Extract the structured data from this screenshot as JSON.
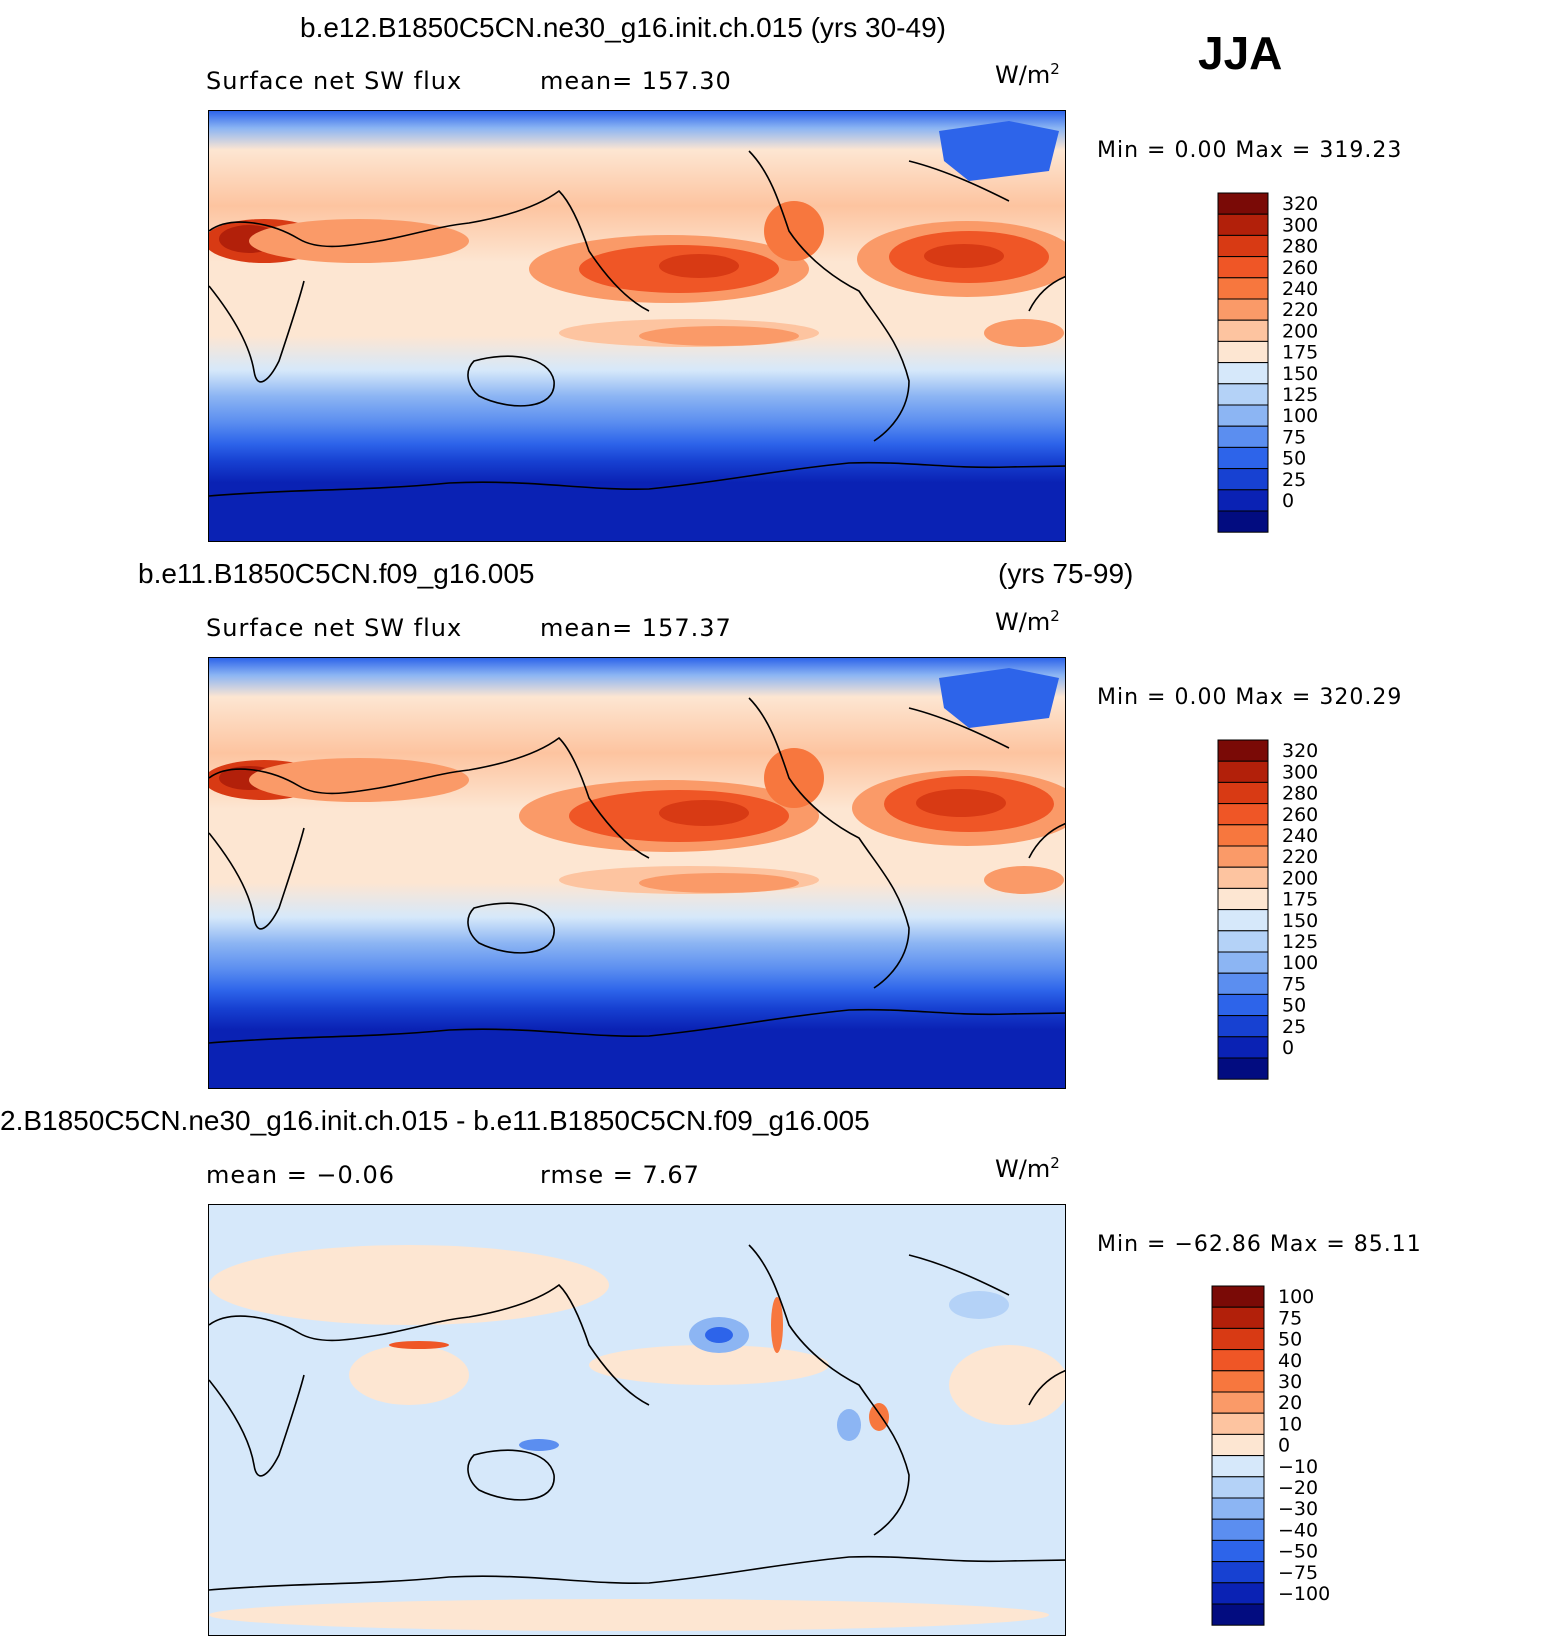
{
  "season_label": "JJA",
  "panels": [
    {
      "title": "b.e12.B1850C5CN.ne30_g16.init.ch.015 (yrs 30-49)",
      "title_right": "",
      "left_label": "Surface net SW flux",
      "center_label": "mean=  157.30",
      "units": "W/m",
      "units_exp": "2",
      "min_max": "Min  =     0.00  Max  =  319.23",
      "colorbar_levels": [
        "320",
        "300",
        "280",
        "260",
        "240",
        "220",
        "200",
        "175",
        "150",
        "125",
        "100",
        "75",
        "50",
        "25",
        "0"
      ],
      "palette": "absolute"
    },
    {
      "title": "b.e11.B1850C5CN.f09_g16.005",
      "title_right": "(yrs 75-99)",
      "left_label": "Surface net SW flux",
      "center_label": "mean=  157.37",
      "units": "W/m",
      "units_exp": "2",
      "min_max": "Min  =     0.00  Max  =  320.29",
      "colorbar_levels": [
        "320",
        "300",
        "280",
        "260",
        "240",
        "220",
        "200",
        "175",
        "150",
        "125",
        "100",
        "75",
        "50",
        "25",
        "0"
      ],
      "palette": "absolute"
    },
    {
      "title": "2.B1850C5CN.ne30_g16.init.ch.015 - b.e11.B1850C5CN.f09_g16.005",
      "title_right": "",
      "left_label": "mean  =    −0.06",
      "center_label": "rmse  =     7.67",
      "units": "W/m",
      "units_exp": "2",
      "min_max": "Min  =  −62.86  Max  =    85.11",
      "colorbar_levels": [
        "100",
        "75",
        "50",
        "40",
        "30",
        "20",
        "10",
        "0",
        "−10",
        "−20",
        "−30",
        "−40",
        "−50",
        "−75",
        "−100"
      ],
      "palette": "difference"
    }
  ],
  "colors": {
    "absolute": [
      "#7a0a06",
      "#b2200a",
      "#d83a14",
      "#ef5626",
      "#f7773e",
      "#fa9a68",
      "#fdc4a0",
      "#fde6d2",
      "#d6e8fa",
      "#b4d2f7",
      "#8cb5f3",
      "#5b8ef0",
      "#2d64ea",
      "#1741d2",
      "#0a22b4",
      "#020c80"
    ],
    "difference": [
      "#7a0a06",
      "#b2200a",
      "#d83a14",
      "#ef5626",
      "#f7773e",
      "#fa9a68",
      "#fdc4a0",
      "#fde6d2",
      "#d6e8fa",
      "#b4d2f7",
      "#8cb5f3",
      "#5b8ef0",
      "#2d64ea",
      "#1741d2",
      "#0a22b4",
      "#020c80"
    ]
  }
}
